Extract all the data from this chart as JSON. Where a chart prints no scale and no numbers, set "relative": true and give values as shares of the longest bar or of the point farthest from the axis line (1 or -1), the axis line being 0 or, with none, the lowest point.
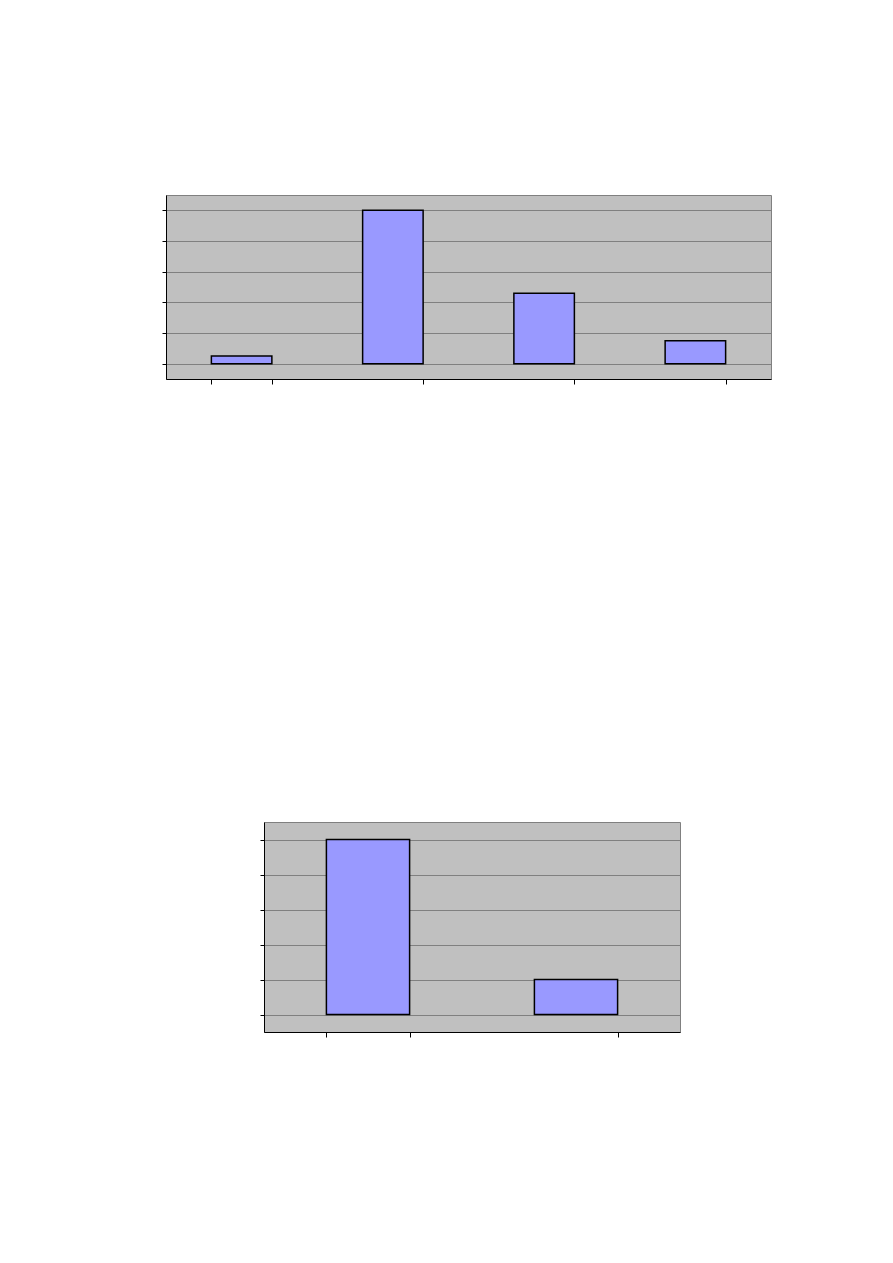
{
  "chart_data": [
    {
      "type": "bar",
      "relative": true,
      "categories": [
        null,
        null,
        null,
        null
      ],
      "values": [
        0.05,
        1,
        0.46,
        0.15
      ],
      "color": "#9999ff",
      "grid": "y",
      "tick_labels": false
    },
    {
      "type": "bar",
      "relative": true,
      "categories": [
        null,
        null
      ],
      "values": [
        1,
        0.2
      ],
      "color": "#9999ff",
      "grid": "y",
      "tick_labels": false
    }
  ]
}
